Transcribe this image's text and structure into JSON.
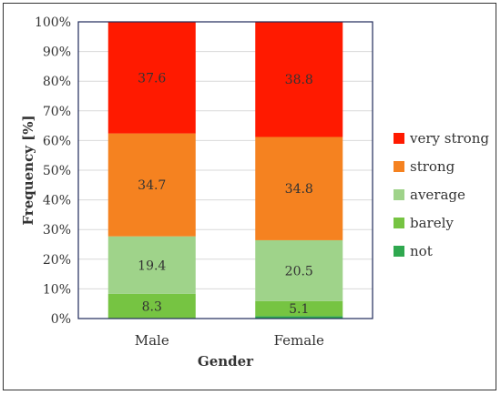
{
  "chart_data": {
    "type": "bar",
    "stacked": true,
    "categories": [
      "Male",
      "Female"
    ],
    "series": [
      {
        "name": "not",
        "color": "#2fa84f",
        "values": [
          0.0,
          0.8
        ],
        "labels": [
          "",
          ""
        ]
      },
      {
        "name": "barely",
        "color": "#76c442",
        "values": [
          8.3,
          5.1
        ],
        "labels": [
          "8.3",
          "5.1"
        ]
      },
      {
        "name": "average",
        "color": "#9fd38a",
        "values": [
          19.4,
          20.5
        ],
        "labels": [
          "19.4",
          "20.5"
        ]
      },
      {
        "name": "strong",
        "color": "#f58220",
        "values": [
          34.7,
          34.8
        ],
        "labels": [
          "34.7",
          "34.8"
        ]
      },
      {
        "name": "very strong",
        "color": "#ff1a00",
        "values": [
          37.6,
          38.8
        ],
        "labels": [
          "37.6",
          "38.8"
        ]
      }
    ],
    "xlabel": "Gender",
    "ylabel": "Frequency [%]",
    "ylim": [
      0,
      100
    ],
    "yticks": [
      "0%",
      "10%",
      "20%",
      "30%",
      "40%",
      "50%",
      "60%",
      "70%",
      "80%",
      "90%",
      "100%"
    ],
    "grid": true,
    "legend_position": "right"
  }
}
